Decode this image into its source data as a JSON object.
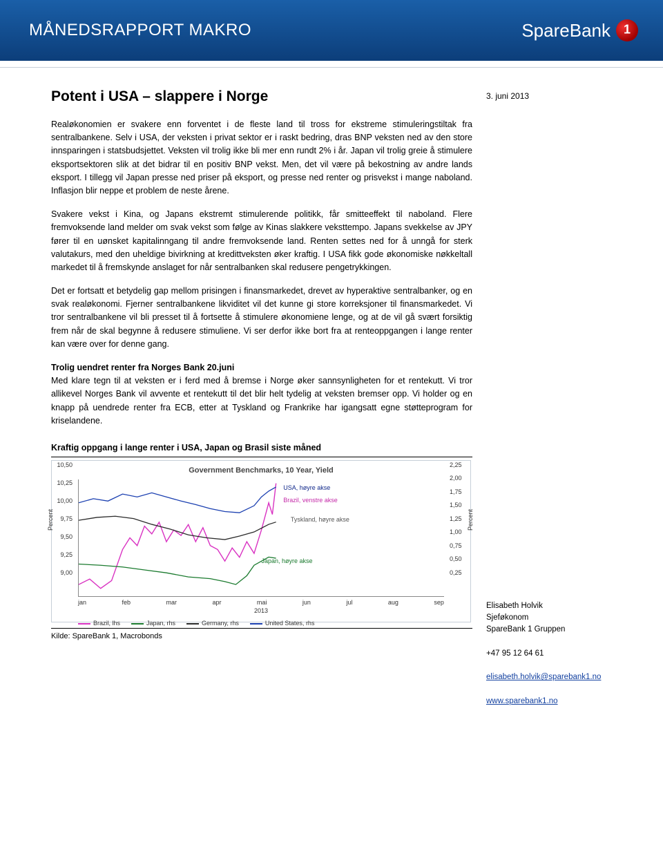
{
  "header": {
    "report_title": "MÅNEDSRAPPORT MAKRO",
    "brand_prefix": "SpareBank",
    "brand_suffix": ""
  },
  "meta": {
    "date": "3. juni 2013"
  },
  "article": {
    "title": "Potent i USA – slappere i Norge",
    "p1": "Realøkonomien er svakere enn forventet i de fleste land til tross for ekstreme stimuleringstiltak fra sentralbankene. Selv i USA, der veksten i privat sektor er i raskt bedring, dras BNP veksten ned av den store innsparingen i statsbudsjettet. Veksten vil trolig ikke bli mer enn rundt 2% i år. Japan vil trolig greie å stimulere eksportsektoren slik at det bidrar til en positiv BNP vekst. Men, det vil være på bekostning av andre lands eksport. I tillegg vil Japan presse ned priser på eksport, og presse ned renter og prisvekst i mange naboland. Inflasjon blir neppe et problem de neste årene.",
    "p2": "Svakere vekst i Kina, og Japans ekstremt stimulerende politikk, får smitteeffekt til naboland. Flere fremvoksende land melder om svak vekst som følge av Kinas slakkere veksttempo. Japans svekkelse av JPY fører til en uønsket kapitalinngang til andre fremvoksende land. Renten settes ned for å unngå for sterk valutakurs, med den uheldige bivirkning at kredittveksten øker kraftig. I USA fikk gode økonomiske nøkkeltall markedet til å fremskynde anslaget for når sentralbanken skal redusere pengetrykkingen.",
    "p3": "Det er fortsatt et betydelig gap mellom prisingen i finansmarkedet, drevet av hyperaktive sentralbanker, og en svak realøkonomi. Fjerner sentralbankene likviditet vil det kunne gi store korreksjoner til finansmarkedet. Vi tror sentralbankene vil bli presset til å fortsette å stimulere økonomiene lenge, og at de vil gå svært forsiktig frem når de skal begynne å redusere stimuliene. Vi ser derfor ikke bort fra at renteoppgangen i lange renter kan være over for denne gang.",
    "sub1": "Trolig uendret renter fra Norges Bank 20.juni",
    "p4": "Med klare tegn til at veksten er i ferd med å bremse i Norge øker sannsynligheten for et rentekutt. Vi tror allikevel Norges Bank vil avvente et rentekutt til det blir helt tydelig at veksten bremser opp. Vi holder og en knapp på uendrede renter fra ECB, etter at Tyskland og Frankrike har igangsatt egne støtteprogram for kriselandene.",
    "chart_caption": "Kraftig oppgang i lange renter i USA, Japan og Brasil siste måned",
    "kilde": "Kilde: SpareBank 1, Macrobonds"
  },
  "chart": {
    "inner_title": "Government Benchmarks, 10 Year, Yield",
    "y_left_unit": "Percent",
    "y_right_unit": "Percent",
    "y_left_ticks": [
      "10,50",
      "10,25",
      "10,00",
      "9,75",
      "9,50",
      "9,25",
      "9,00"
    ],
    "y_right_ticks": [
      "2,25",
      "2,00",
      "1,75",
      "1,50",
      "1,25",
      "1,00",
      "0,75",
      "0,50",
      "0,25"
    ],
    "y_left_min": 9.0,
    "y_left_max": 10.5,
    "y_right_min": 0.25,
    "y_right_max": 2.25,
    "x_ticks": [
      "jan",
      "feb",
      "mar",
      "apr",
      "mai",
      "jun",
      "jul",
      "aug",
      "sep"
    ],
    "x_year": "2013",
    "label_usa": "USA, høyre akse",
    "label_brazil": "Brazil, venstre akse",
    "label_tyskland": "Tyskland, høyre akse",
    "label_japan": "Japan, høyre akse",
    "colors": {
      "brazil": "#d932c2",
      "japan": "#1a7a2e",
      "germany": "#2a2a2a",
      "usa": "#1a3fb0",
      "usa_label": "#10288a",
      "brazil_label": "#c42aa8",
      "tyskland_label": "#555555",
      "japan_label": "#1a7a2e"
    },
    "legend": [
      {
        "label": "Brazil, lhs",
        "color": "#d932c2"
      },
      {
        "label": "Japan, rhs",
        "color": "#1a7a2e"
      },
      {
        "label": "Germany, rhs",
        "color": "#2a2a2a"
      },
      {
        "label": "United States, rhs",
        "color": "#1a3fb0"
      }
    ],
    "series": {
      "brazil_lhs": [
        [
          0,
          9.15
        ],
        [
          3,
          9.22
        ],
        [
          6,
          9.1
        ],
        [
          9,
          9.2
        ],
        [
          12,
          9.6
        ],
        [
          14,
          9.75
        ],
        [
          16,
          9.65
        ],
        [
          18,
          9.9
        ],
        [
          20,
          9.8
        ],
        [
          22,
          9.95
        ],
        [
          24,
          9.7
        ],
        [
          26,
          9.85
        ],
        [
          28,
          9.78
        ],
        [
          30,
          9.92
        ],
        [
          32,
          9.7
        ],
        [
          34,
          9.88
        ],
        [
          36,
          9.65
        ],
        [
          38,
          9.6
        ],
        [
          40,
          9.45
        ],
        [
          42,
          9.62
        ],
        [
          44,
          9.5
        ],
        [
          46,
          9.7
        ],
        [
          48,
          9.55
        ],
        [
          50,
          9.85
        ],
        [
          52,
          10.2
        ],
        [
          53,
          10.05
        ],
        [
          54,
          10.45
        ]
      ],
      "usa_rhs": [
        [
          0,
          1.85
        ],
        [
          4,
          1.92
        ],
        [
          8,
          1.88
        ],
        [
          12,
          2.0
        ],
        [
          16,
          1.95
        ],
        [
          20,
          2.02
        ],
        [
          24,
          1.95
        ],
        [
          28,
          1.88
        ],
        [
          32,
          1.82
        ],
        [
          36,
          1.75
        ],
        [
          40,
          1.7
        ],
        [
          44,
          1.68
        ],
        [
          48,
          1.8
        ],
        [
          50,
          1.95
        ],
        [
          52,
          2.05
        ],
        [
          54,
          2.12
        ]
      ],
      "germany_rhs": [
        [
          0,
          1.55
        ],
        [
          5,
          1.6
        ],
        [
          10,
          1.62
        ],
        [
          15,
          1.58
        ],
        [
          20,
          1.48
        ],
        [
          25,
          1.4
        ],
        [
          30,
          1.3
        ],
        [
          35,
          1.25
        ],
        [
          40,
          1.22
        ],
        [
          44,
          1.28
        ],
        [
          48,
          1.35
        ],
        [
          52,
          1.48
        ],
        [
          54,
          1.52
        ]
      ],
      "japan_rhs": [
        [
          0,
          0.8
        ],
        [
          6,
          0.78
        ],
        [
          12,
          0.75
        ],
        [
          18,
          0.7
        ],
        [
          24,
          0.65
        ],
        [
          30,
          0.58
        ],
        [
          36,
          0.55
        ],
        [
          40,
          0.5
        ],
        [
          43,
          0.45
        ],
        [
          46,
          0.6
        ],
        [
          48,
          0.78
        ],
        [
          50,
          0.85
        ],
        [
          52,
          0.92
        ],
        [
          54,
          0.9
        ]
      ]
    }
  },
  "contact": {
    "name": "Elisabeth Holvik",
    "title": "Sjeføkonom",
    "org": "SpareBank 1 Gruppen",
    "phone": "+47 95 12 64 61",
    "email": "elisabeth.holvik@sparebank1.no",
    "web": "www.sparebank1.no"
  }
}
